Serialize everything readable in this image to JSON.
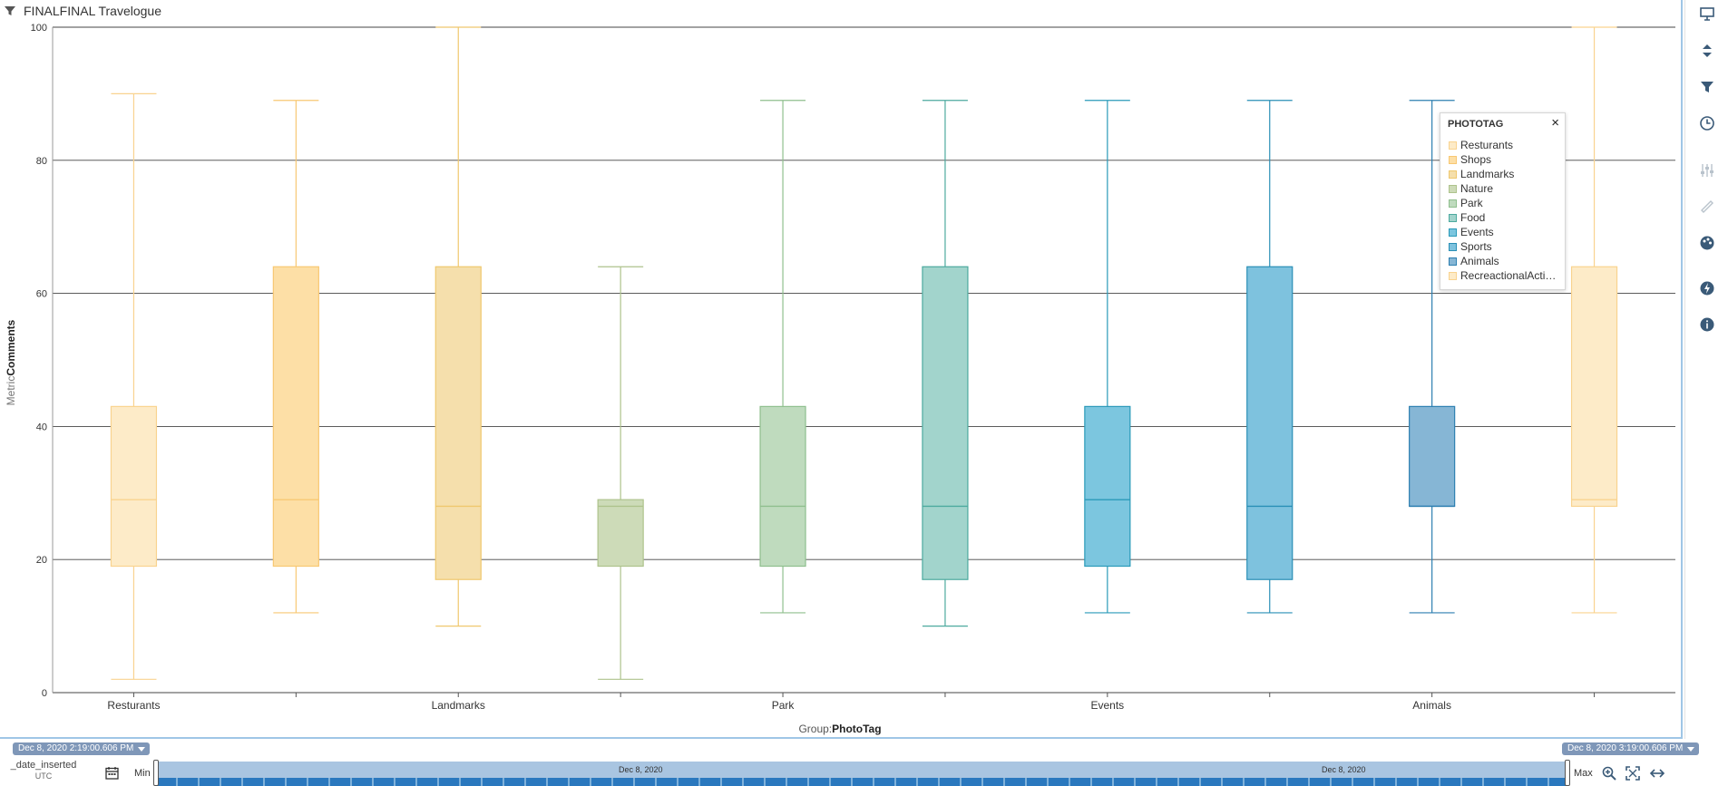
{
  "header": {
    "title": "FINALFINAL Travelogue",
    "filter_icon": "filter-icon"
  },
  "legend": {
    "title": "PHOTOTAG",
    "close": "×",
    "items": [
      {
        "label": "Resturants",
        "color": "#fdebc8"
      },
      {
        "label": "Shops",
        "color": "#fddfa6"
      },
      {
        "label": "Landmarks",
        "color": "#f5dfac"
      },
      {
        "label": "Nature",
        "color": "#cddbb8"
      },
      {
        "label": "Park",
        "color": "#bfdbbe"
      },
      {
        "label": "Food",
        "color": "#a2d4cc"
      },
      {
        "label": "Events",
        "color": "#7cc6df"
      },
      {
        "label": "Sports",
        "color": "#7ec2de"
      },
      {
        "label": "Animals",
        "color": "#86b6d5"
      },
      {
        "label": "RecreactionalActivi...",
        "color": "#fdebc8"
      }
    ]
  },
  "chart_data": {
    "type": "boxplot",
    "ylabel_prefix": "Metric",
    "ylabel": "Comments",
    "xlabel_prefix": "Group:",
    "xlabel": "PhotoTag",
    "ylim": [
      0,
      100
    ],
    "yticks": [
      0,
      20,
      40,
      60,
      80,
      100
    ],
    "grid": true,
    "legend_position": "top-right",
    "categories": [
      "Resturants",
      "Shops",
      "Landmarks",
      "Nature",
      "Park",
      "Food",
      "Events",
      "Sports",
      "Animals",
      "RecreactionalActivities"
    ],
    "tick_labels": [
      "Resturants",
      "",
      "Landmarks",
      "",
      "Park",
      "",
      "Events",
      "",
      "Animals",
      ""
    ],
    "boxes": [
      {
        "min": 2,
        "q1": 19,
        "median": 29,
        "q3": 43,
        "max": 90,
        "fill": "#fdebc8",
        "stroke": "#f9d38f"
      },
      {
        "min": 12,
        "q1": 19,
        "median": 29,
        "q3": 64,
        "max": 89,
        "fill": "#fddfa6",
        "stroke": "#f8c873"
      },
      {
        "min": 10,
        "q1": 17,
        "median": 28,
        "q3": 64,
        "max": 100,
        "fill": "#f5dfac",
        "stroke": "#efc86e"
      },
      {
        "min": 2,
        "q1": 19,
        "median": 28,
        "q3": 29,
        "max": 64,
        "fill": "#cddbb8",
        "stroke": "#aec38c"
      },
      {
        "min": 12,
        "q1": 19,
        "median": 28,
        "q3": 43,
        "max": 89,
        "fill": "#bfdbbe",
        "stroke": "#8fbf8e"
      },
      {
        "min": 10,
        "q1": 17,
        "median": 28,
        "q3": 64,
        "max": 89,
        "fill": "#a2d4cc",
        "stroke": "#4daa9f"
      },
      {
        "min": 12,
        "q1": 19,
        "median": 29,
        "q3": 43,
        "max": 89,
        "fill": "#7cc6df",
        "stroke": "#2a9ab9"
      },
      {
        "min": 12,
        "q1": 17,
        "median": 28,
        "q3": 64,
        "max": 89,
        "fill": "#7ec2de",
        "stroke": "#2a8fb6"
      },
      {
        "min": 12,
        "q1": 28,
        "median": 28,
        "q3": 43,
        "max": 89,
        "fill": "#86b6d5",
        "stroke": "#2d7fb0"
      },
      {
        "min": 12,
        "q1": 28,
        "median": 29,
        "q3": 64,
        "max": 100,
        "fill": "#fdebc8",
        "stroke": "#f9d38f"
      }
    ]
  },
  "timebar": {
    "start": "Dec 8, 2020 2:19:00.606 PM",
    "end": "Dec 8, 2020 3:19:00.606 PM",
    "field": "_date_inserted",
    "tz": "UTC",
    "min": "Min",
    "max": "Max",
    "track_labels": [
      "Dec 8, 2020",
      "Dec 8, 2020"
    ]
  }
}
